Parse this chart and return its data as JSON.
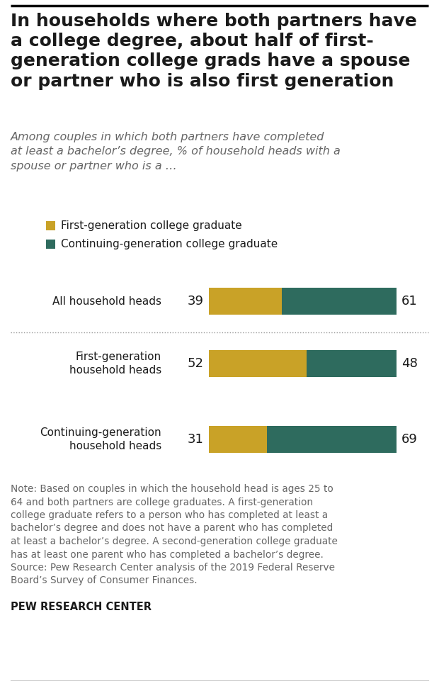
{
  "title": "In households where both partners have\na college degree, about half of first-\ngeneration college grads have a spouse\nor partner who is also first generation",
  "subtitle": "Among couples in which both partners have completed\nat least a bachelor’s degree, % of household heads with a\nspouse or partner who is a …",
  "categories": [
    "All household heads",
    "First-generation\nhousehold heads",
    "Continuing-generation\nhousehold heads"
  ],
  "first_gen_values": [
    39,
    52,
    31
  ],
  "continuing_gen_values": [
    61,
    48,
    69
  ],
  "first_gen_color": "#C9A227",
  "continuing_gen_color": "#2E6B5E",
  "legend_labels": [
    "First-generation college graduate",
    "Continuing-generation college graduate"
  ],
  "note_lines": [
    "Note: Based on couples in which the household head is ages 25 to",
    "64 and both partners are college graduates. A first-generation",
    "college graduate refers to a person who has completed at least a",
    "bachelor’s degree and does not have a parent who has completed",
    "at least a bachelor’s degree. A second-generation college graduate",
    "has at least one parent who has completed a bachelor’s degree.",
    "Source: Pew Research Center analysis of the 2019 Federal Reserve",
    "Board’s Survey of Consumer Finances."
  ],
  "source_label": "PEW RESEARCH CENTER",
  "background_color": "#FFFFFF",
  "top_border_color": "#000000",
  "separator_color": "#999999",
  "title_color": "#1a1a1a",
  "subtitle_color": "#666666",
  "note_color": "#666666",
  "label_color": "#1a1a1a",
  "number_color": "#1a1a1a"
}
